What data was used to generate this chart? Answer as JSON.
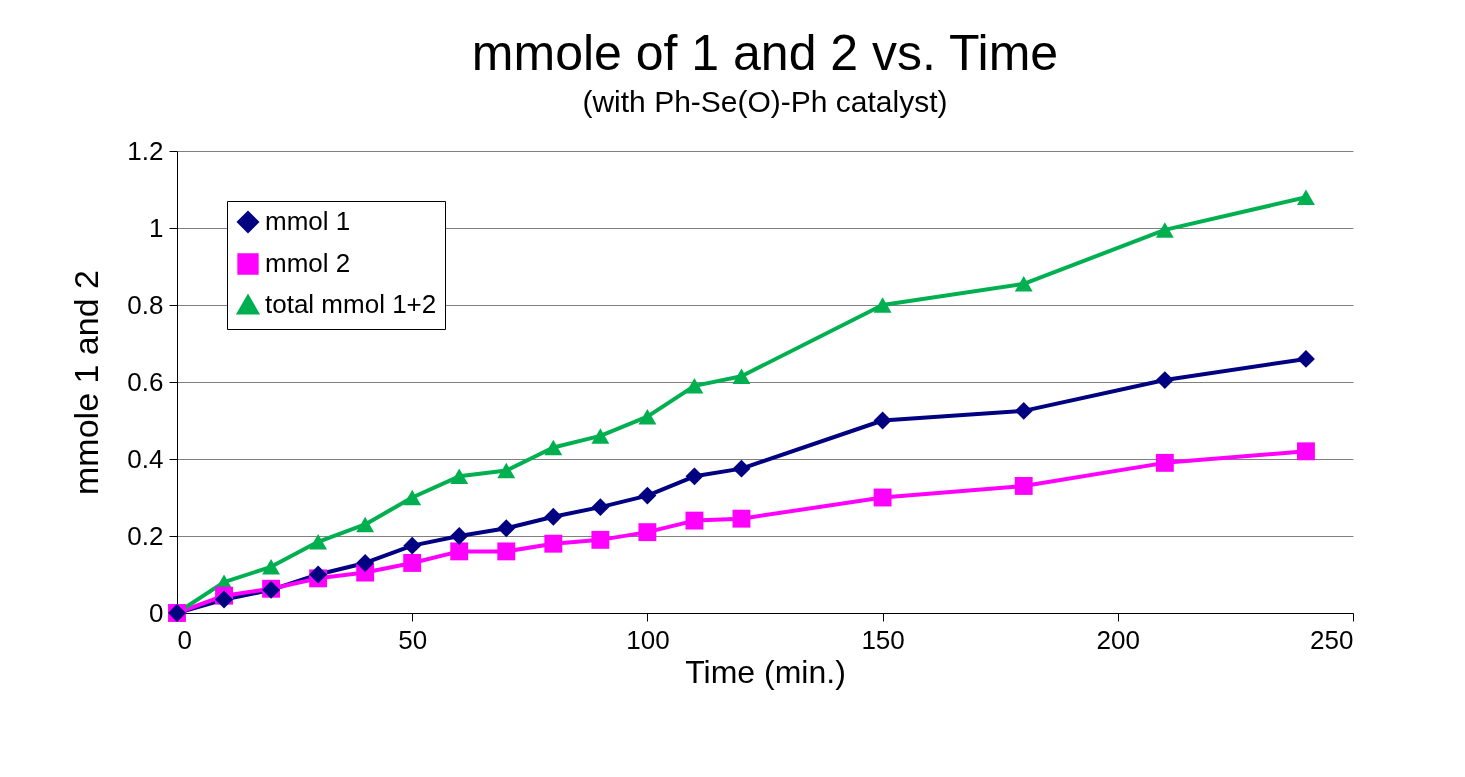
{
  "chart_data": {
    "type": "line",
    "title": "mmole of 1 and 2 vs. Time",
    "subtitle": "(with Ph-Se(O)-Ph catalyst)",
    "xlabel": "Time (min.)",
    "ylabel": "mmole 1 and 2",
    "x": [
      0,
      10,
      20,
      30,
      40,
      50,
      60,
      70,
      80,
      90,
      100,
      110,
      120,
      150,
      180,
      210,
      240
    ],
    "series": [
      {
        "name": "mmol 1",
        "color": "#000080",
        "marker": "diamond",
        "values": [
          0,
          0.035,
          0.06,
          0.1,
          0.13,
          0.175,
          0.2,
          0.22,
          0.25,
          0.275,
          0.305,
          0.355,
          0.375,
          0.5,
          0.525,
          0.605,
          0.66
        ]
      },
      {
        "name": "mmol 2",
        "color": "#ff00ff",
        "marker": "square",
        "values": [
          0,
          0.045,
          0.063,
          0.09,
          0.105,
          0.13,
          0.16,
          0.16,
          0.18,
          0.19,
          0.21,
          0.24,
          0.245,
          0.3,
          0.33,
          0.39,
          0.42
        ]
      },
      {
        "name": "total mmol 1+2",
        "color": "#00b050",
        "marker": "triangle",
        "values": [
          0,
          0.08,
          0.12,
          0.185,
          0.23,
          0.3,
          0.355,
          0.37,
          0.43,
          0.46,
          0.51,
          0.59,
          0.615,
          0.8,
          0.855,
          0.995,
          1.08
        ]
      }
    ],
    "xlim": [
      0,
      250
    ],
    "xticks": [
      0,
      50,
      100,
      150,
      200,
      250
    ],
    "ylim": [
      0,
      1.2
    ],
    "yticks": [
      0,
      0.2,
      0.4,
      0.6,
      0.8,
      1,
      1.2
    ],
    "grid": "y",
    "legend": "top left",
    "line_style": "solid"
  }
}
